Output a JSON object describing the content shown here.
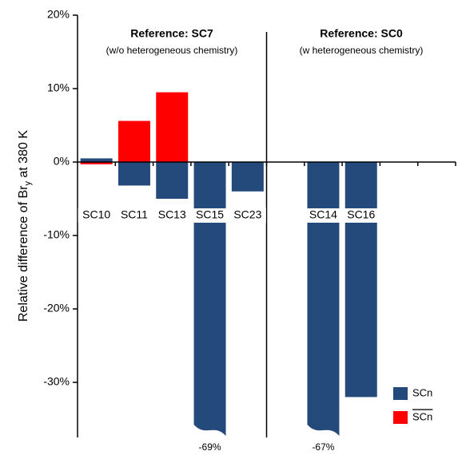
{
  "chart_data": {
    "type": "bar",
    "y_label": [
      "Relative difference of Br",
      "y",
      " at 380 K"
    ],
    "annotations": [
      "Reference: SC7",
      "(w/o heterogeneous chemistry)",
      "Reference: SC0",
      "(w heterogeneous chemistry)"
    ],
    "categories": [
      "SC10",
      "SC11",
      "SC13",
      "SC15",
      "SC23",
      null,
      "SC14",
      "SC16",
      null,
      null
    ],
    "series": [
      {
        "name": "SCn",
        "color": "#244a7c",
        "values": [
          0.5,
          -3.2,
          -5,
          -69,
          -4,
          null,
          -67,
          -32,
          null,
          null
        ],
        "value_labels": [
          null,
          null,
          null,
          "-69%",
          null,
          null,
          "-67%",
          null,
          null,
          null
        ]
      },
      {
        "name": "SCn",
        "color": "#ff0000",
        "values": [
          -0.3,
          5.6,
          9.5,
          null,
          null,
          null,
          null,
          null,
          null,
          null
        ]
      }
    ],
    "ylim": [
      -37.5,
      20
    ],
    "yticks": [
      {
        "value": 20,
        "label": "20%"
      },
      {
        "value": 10,
        "label": "10%"
      },
      {
        "value": 0,
        "label": "0%"
      },
      {
        "value": -10,
        "label": "-10%"
      },
      {
        "value": -20,
        "label": "-20%"
      },
      {
        "value": -30,
        "label": "-30%"
      }
    ],
    "legend": "lower right"
  }
}
